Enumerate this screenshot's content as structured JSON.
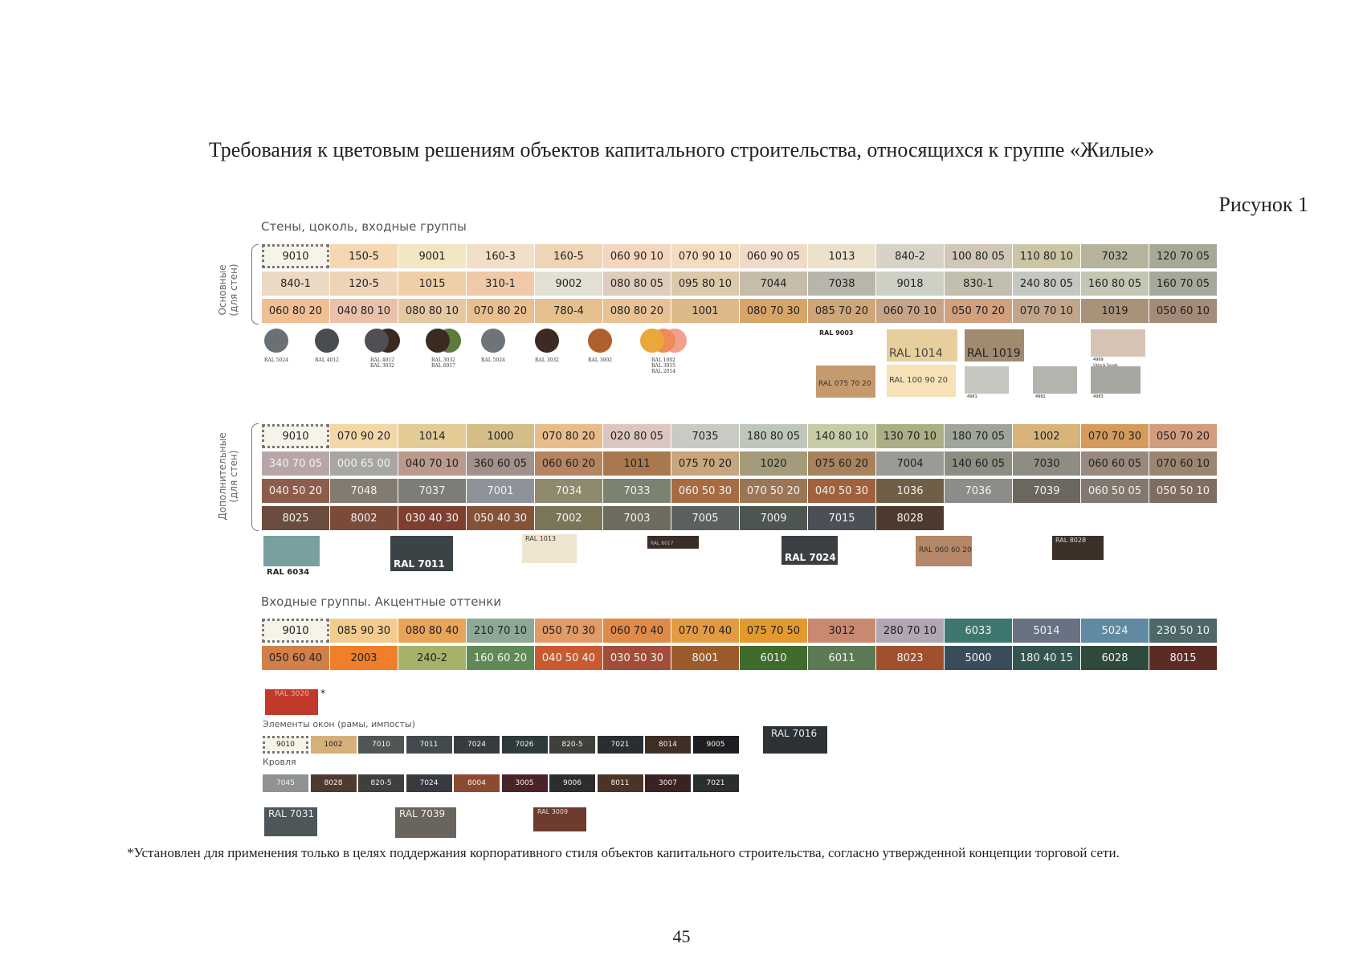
{
  "document": {
    "title": "Требования к цветовым решениям объектов капитального строительства, относящихся к группе «Жилые»",
    "figure_label": "Рисунок 1",
    "footnote": "*Установлен для применения только в целях поддержания корпоративного стиля объектов капитального строительства, согласно утвержденной концепции торговой сети.",
    "page_number": "45"
  },
  "section1": {
    "heading": "Стены, цоколь, входные группы",
    "side_label": "Основные\n(для стен)",
    "rows": [
      [
        {
          "t": "9010",
          "c": "#f6f3e8",
          "sel": true
        },
        {
          "t": "150-5",
          "c": "#f5d8b3"
        },
        {
          "t": "9001",
          "c": "#f3e6c2"
        },
        {
          "t": "160-3",
          "c": "#f2dfc8"
        },
        {
          "t": "160-5",
          "c": "#efd5b5"
        },
        {
          "t": "060 90 10",
          "c": "#f3d6bd"
        },
        {
          "t": "070 90 10",
          "c": "#f4dcc0"
        },
        {
          "t": "060 90 05",
          "c": "#f0dbc9"
        },
        {
          "t": "1013",
          "c": "#ece1cb"
        },
        {
          "t": "840-2",
          "c": "#d8d2c6"
        },
        {
          "t": "100 80 05",
          "c": "#cfc8b6"
        },
        {
          "t": "110 80 10",
          "c": "#c9c5a5"
        },
        {
          "t": "7032",
          "c": "#b7b29b"
        },
        {
          "t": "120 70 05",
          "c": "#a8a898"
        }
      ],
      [
        {
          "t": "840-1",
          "c": "#ecd9c4"
        },
        {
          "t": "120-5",
          "c": "#eed3b7"
        },
        {
          "t": "1015",
          "c": "#efd0a6"
        },
        {
          "t": "310-1",
          "c": "#f0c9a8"
        },
        {
          "t": "9002",
          "c": "#e4dfd3"
        },
        {
          "t": "080 80 05",
          "c": "#dccdbc"
        },
        {
          "t": "095 80 10",
          "c": "#dcc9a9"
        },
        {
          "t": "7044",
          "c": "#c5bca9"
        },
        {
          "t": "7038",
          "c": "#b8b6aa"
        },
        {
          "t": "9018",
          "c": "#cfd0c4"
        },
        {
          "t": "830-1",
          "c": "#c3bfae"
        },
        {
          "t": "240 80 05",
          "c": "#c4c8c0"
        },
        {
          "t": "160 80 05",
          "c": "#c4c6b4"
        },
        {
          "t": "160 70 05",
          "c": "#a5a99b"
        }
      ],
      [
        {
          "t": "060 80 20",
          "c": "#f0bf94"
        },
        {
          "t": "040 80 10",
          "c": "#e9c1ab"
        },
        {
          "t": "080 80 10",
          "c": "#e4c7a3"
        },
        {
          "t": "070 80 20",
          "c": "#eabf8f"
        },
        {
          "t": "780-4",
          "c": "#e6c08f"
        },
        {
          "t": "080 80 20",
          "c": "#e8c295"
        },
        {
          "t": "1001",
          "c": "#dcb988"
        },
        {
          "t": "080 70 30",
          "c": "#d8a569"
        },
        {
          "t": "085 70 20",
          "c": "#cda67a"
        },
        {
          "t": "060 70 10",
          "c": "#c7a489"
        },
        {
          "t": "050 70 20",
          "c": "#d3a07e"
        },
        {
          "t": "070 70 10",
          "c": "#c2a68c"
        },
        {
          "t": "1019",
          "c": "#a8937a"
        },
        {
          "t": "050 60 10",
          "c": "#a48a78"
        }
      ]
    ],
    "circles": [
      {
        "colors": [
          "#6b7074"
        ],
        "label": "RAL 5024"
      },
      {
        "colors": [
          "#4a4d50"
        ],
        "label": "RAL 4012"
      },
      {
        "colors": [
          "#4f4f55",
          "#3a2a22"
        ],
        "label": "RAL 4012\nRAL 3032"
      },
      {
        "colors": [
          "#3a2a22",
          "#5e7a3c"
        ],
        "label": "RAL 3032\nRAL 6017"
      },
      {
        "colors": [
          "#6f7478"
        ],
        "label": "RAL 5024"
      },
      {
        "colors": [
          "#3d2a22"
        ],
        "label": "RAL 3032"
      },
      {
        "colors": [
          "#b0602c"
        ],
        "label": "RAL 3002"
      },
      {
        "colors": [
          "#e8a83a",
          "#ef8a5a",
          "#f2a08a"
        ],
        "label": "RAL 1002\nRAL 3015\nRAL 2014"
      }
    ],
    "extra_tags": [
      {
        "label": "RAL 9003",
        "color": "#ffffff",
        "text_color": "#222"
      },
      {
        "label": "RAL 075 70 20",
        "color": "#c69a6f",
        "text_color": "#333"
      },
      {
        "label": "RAL 1014",
        "color": "#e6cf9c",
        "text_color": "#444"
      },
      {
        "label": "RAL 100 90 20",
        "color": "#f6e2b6",
        "text_color": "#444"
      },
      {
        "label": "RAL 1019",
        "color": "#a18b70",
        "text_color": "#222"
      },
      {
        "label": "4981",
        "color": "#c8c6c0",
        "text_color": "#222"
      },
      {
        "label": "4982",
        "color": "#b4b3ad",
        "text_color": "#222"
      },
      {
        "label": "4969",
        "sub": "Viktoria Facade",
        "color": "#d6c3b6",
        "text_color": "#222"
      },
      {
        "label": "4983",
        "color": "#a7a6a0",
        "text_color": "#222"
      }
    ]
  },
  "section2": {
    "side_label": "Дополнительные\n(для стен)",
    "rows": [
      [
        {
          "t": "9010",
          "c": "#f6f3e8",
          "sel": true
        },
        {
          "t": "070 90 20",
          "c": "#f4d7a8"
        },
        {
          "t": "1014",
          "c": "#e3cb96"
        },
        {
          "t": "1000",
          "c": "#d4bd86"
        },
        {
          "t": "070 80 20",
          "c": "#e8bd8b"
        },
        {
          "t": "020 80 05",
          "c": "#dcc7c0"
        },
        {
          "t": "7035",
          "c": "#c9cac4"
        },
        {
          "t": "180 80 05",
          "c": "#bfc6bc"
        },
        {
          "t": "140 80 10",
          "c": "#c8cca6"
        },
        {
          "t": "130 70 10",
          "c": "#acae86"
        },
        {
          "t": "180 70 05",
          "c": "#9fa59b"
        },
        {
          "t": "1002",
          "c": "#d8b47a"
        },
        {
          "t": "070 70 30",
          "c": "#d59b5c"
        },
        {
          "t": "050 70 20",
          "c": "#d19d7f"
        }
      ],
      [
        {
          "t": "340 70 05",
          "c": "#b7a6a8",
          "dk": true
        },
        {
          "t": "000 65 00",
          "c": "#a8a6a3",
          "dk": true
        },
        {
          "t": "040 70 10",
          "c": "#b99a8b"
        },
        {
          "t": "360 60 05",
          "c": "#a38f8b"
        },
        {
          "t": "060 60 20",
          "c": "#b48560"
        },
        {
          "t": "1011",
          "c": "#a8794e"
        },
        {
          "t": "075 70 20",
          "c": "#c7a57d"
        },
        {
          "t": "1020",
          "c": "#a39b7a"
        },
        {
          "t": "075 60 20",
          "c": "#a7825d"
        },
        {
          "t": "7004",
          "c": "#9c9a97"
        },
        {
          "t": "140 60 05",
          "c": "#8a8e83"
        },
        {
          "t": "7030",
          "c": "#8f8c84"
        },
        {
          "t": "060 60 05",
          "c": "#998a80"
        },
        {
          "t": "070 60 10",
          "c": "#9c8570"
        }
      ],
      [
        {
          "t": "040 50 20",
          "c": "#8e5c4a"
        },
        {
          "t": "7048",
          "c": "#837b70",
          "dk": true
        },
        {
          "t": "7037",
          "c": "#7d7d78",
          "dk": true
        },
        {
          "t": "7001",
          "c": "#8d9399",
          "dk": true
        },
        {
          "t": "7034",
          "c": "#8f896e",
          "dk": true
        },
        {
          "t": "7033",
          "c": "#7b8270",
          "dk": true
        },
        {
          "t": "060 50 30",
          "c": "#a76b41",
          "dk": true
        },
        {
          "t": "070 50 20",
          "c": "#9b7654",
          "dk": true
        },
        {
          "t": "040 50 30",
          "c": "#a1603e",
          "dk": true
        },
        {
          "t": "1036",
          "c": "#6f5f47",
          "dk": true
        },
        {
          "t": "7036",
          "c": "#8e8c89",
          "dk": true
        },
        {
          "t": "7039",
          "c": "#6c6860",
          "dk": true
        },
        {
          "t": "060 50 05",
          "c": "#82786f",
          "dk": true
        },
        {
          "t": "050 50 10",
          "c": "#7f6d62",
          "dk": true
        }
      ],
      [
        {
          "t": "8025",
          "c": "#6a4d3e",
          "dk": true
        },
        {
          "t": "8002",
          "c": "#7a4b38",
          "dk": true
        },
        {
          "t": "030 40 30",
          "c": "#7f3f30",
          "dk": true
        },
        {
          "t": "050 40 30",
          "c": "#835237",
          "dk": true
        },
        {
          "t": "7002",
          "c": "#7c7659",
          "dk": true
        },
        {
          "t": "7003",
          "c": "#6e6c5e",
          "dk": true
        },
        {
          "t": "7005",
          "c": "#5c605d",
          "dk": true
        },
        {
          "t": "7009",
          "c": "#4d5550",
          "dk": true
        },
        {
          "t": "7015",
          "c": "#4c5056",
          "dk": true
        },
        {
          "t": "8028",
          "c": "#4e3b2f",
          "dk": true
        }
      ]
    ],
    "extra_tags": [
      {
        "label": "RAL 6034",
        "color": "#7a9fa1",
        "text_color": "#222"
      },
      {
        "label": "RAL 7011",
        "color": "#3b4346",
        "text_color": "#fff"
      },
      {
        "label": "RAL 1013",
        "color": "#efe4cf",
        "text_color": "#333"
      },
      {
        "label": "RAL 8017",
        "color": "#3a2d27",
        "text_color": "#bbb"
      },
      {
        "label": "RAL 7024",
        "color": "#3b3f44",
        "text_color": "#fff"
      },
      {
        "label": "RAL 060 60 20",
        "color": "#b58667",
        "text_color": "#333"
      },
      {
        "label": "RAL 8028",
        "color": "#3b2f28",
        "text_color": "#ddd"
      }
    ]
  },
  "section3": {
    "heading": "Входные группы. Акцентные оттенки",
    "rows": [
      [
        {
          "t": "9010",
          "c": "#f6f3e8",
          "sel": true
        },
        {
          "t": "085 90 30",
          "c": "#f2cc8e"
        },
        {
          "t": "080 80 40",
          "c": "#e8a458"
        },
        {
          "t": "210 70 10",
          "c": "#8ea895"
        },
        {
          "t": "050 70 30",
          "c": "#e29a66"
        },
        {
          "t": "060 70 40",
          "c": "#e08a49"
        },
        {
          "t": "070 70 40",
          "c": "#e39a43"
        },
        {
          "t": "075 70 50",
          "c": "#e29a2e"
        },
        {
          "t": "3012",
          "c": "#c98970"
        },
        {
          "t": "280 70 10",
          "c": "#b0a7b2"
        },
        {
          "t": "6033",
          "c": "#3e776f",
          "dk": true
        },
        {
          "t": "5014",
          "c": "#687283",
          "dk": true
        },
        {
          "t": "5024",
          "c": "#5f8aa1",
          "dk": true
        },
        {
          "t": "230 50 10",
          "c": "#4e6767",
          "dk": true
        }
      ],
      [
        {
          "t": "050 60 40",
          "c": "#d37f4a"
        },
        {
          "t": "2003",
          "c": "#ef7f2b"
        },
        {
          "t": "240-2",
          "c": "#a6b26a"
        },
        {
          "t": "160 60 20",
          "c": "#5f8a56"
        },
        {
          "t": "040 50 40",
          "c": "#c75a30"
        },
        {
          "t": "030 50 30",
          "c": "#a24d39"
        },
        {
          "t": "8001",
          "c": "#9b5b2c",
          "dk": true
        },
        {
          "t": "6010",
          "c": "#3f6b2c",
          "dk": true
        },
        {
          "t": "6011",
          "c": "#5b7a54",
          "dk": true
        },
        {
          "t": "8023",
          "c": "#a0502d",
          "dk": true
        },
        {
          "t": "5000",
          "c": "#3a4b5a",
          "dk": true
        },
        {
          "t": "180 40 15",
          "c": "#34554f",
          "dk": true
        },
        {
          "t": "6028",
          "c": "#2f4a3c",
          "dk": true
        },
        {
          "t": "8015",
          "c": "#5c2c24",
          "dk": true
        }
      ]
    ],
    "accent_tag": {
      "label": "RAL 3020",
      "color": "#c0392b",
      "text_color": "#f0b0a8",
      "star": "*"
    }
  },
  "windows": {
    "heading": "Элементы окон (рамы, импосты)",
    "cells": [
      {
        "t": "9010",
        "c": "#f6f3e8",
        "sel": true
      },
      {
        "t": "1002",
        "c": "#d6b07a"
      },
      {
        "t": "7010",
        "c": "#505654",
        "dk": true
      },
      {
        "t": "7011",
        "c": "#434a4e",
        "dk": true
      },
      {
        "t": "7024",
        "c": "#373b40",
        "dk": true
      },
      {
        "t": "7026",
        "c": "#2d3a3c",
        "dk": true
      },
      {
        "t": "820-5",
        "c": "#3f3f3c",
        "dk": true
      },
      {
        "t": "7021",
        "c": "#2b2e30",
        "dk": true
      },
      {
        "t": "8014",
        "c": "#3e2e25",
        "dk": true
      },
      {
        "t": "9005",
        "c": "#1d1e20",
        "dk": true
      }
    ],
    "tag": {
      "label": "RAL 7016",
      "color": "#2c3236",
      "text_color": "#eee"
    }
  },
  "roof": {
    "heading": "Кровля",
    "cells": [
      {
        "t": "7045",
        "c": "#8f9294",
        "dk": true
      },
      {
        "t": "8028",
        "c": "#4e3b2f",
        "dk": true
      },
      {
        "t": "820-5",
        "c": "#3f3f3c",
        "dk": true
      },
      {
        "t": "7024",
        "c": "#373b40",
        "dk": true
      },
      {
        "t": "8004",
        "c": "#8c4a30",
        "dk": true
      },
      {
        "t": "3005",
        "c": "#4b2228",
        "dk": true
      },
      {
        "t": "9006",
        "c": "#2c2d2f",
        "dk": true
      },
      {
        "t": "8011",
        "c": "#4b3325",
        "dk": true
      },
      {
        "t": "3007",
        "c": "#3a2224",
        "dk": true
      },
      {
        "t": "7021",
        "c": "#2b2e30",
        "dk": true
      }
    ],
    "tags": [
      {
        "label": "RAL 7031",
        "color": "#4d5659",
        "text_color": "#eee"
      },
      {
        "label": "RAL 7039",
        "color": "#6a655c",
        "text_color": "#eee"
      },
      {
        "label": "RAL 3009",
        "color": "#6e3b2f",
        "text_color": "#ddd"
      }
    ]
  }
}
